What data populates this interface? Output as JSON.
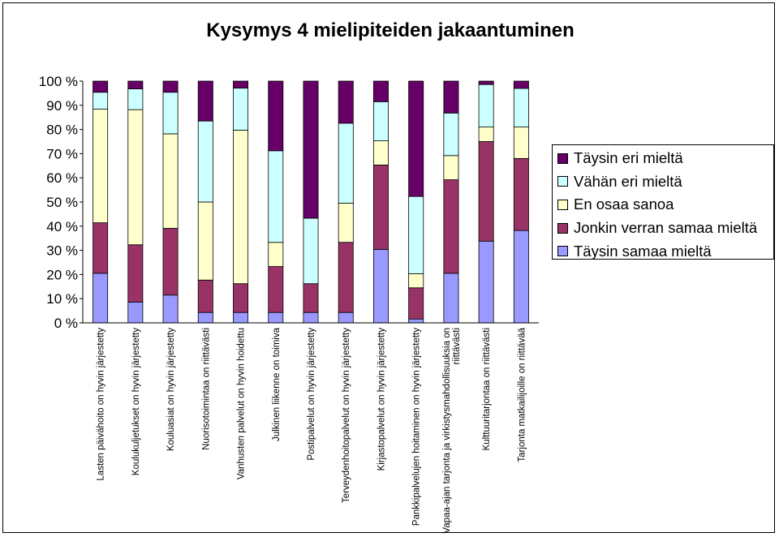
{
  "chart_data": {
    "type": "bar",
    "stacked": true,
    "percent": true,
    "title": "Kysymys 4 mielipiteiden jakaantuminen",
    "ylim": [
      0,
      100
    ],
    "y_ticks": [
      "0 %",
      "10 %",
      "20 %",
      "30 %",
      "40 %",
      "50 %",
      "60 %",
      "70 %",
      "80 %",
      "90 %",
      "100 %"
    ],
    "grid": false,
    "legend_position": "right",
    "categories": [
      "Lasten päivähoito on hyvin järjestetty",
      "Koulukuljetukset on hyvin järjestetty",
      "Kouluasiat on hyvin järjestetty",
      "Nuorisotoimintaa on riittävästi",
      "Vanhusten palvelut on hyvin hoidettu",
      "Julkinen liikenne on toimiva",
      "Postipalvelut on hyvin järjestetty",
      "Terveydenhoitopalvelut on hyvin järjestetty",
      "Kirjastopalvelut on hyvin järjestetty",
      "Pankkipalvelujen hoitaminen on hyvin järjestetty",
      "Vapaa-ajan tarjonta ja virkistysmahdollisuuksia on riittävästi",
      "Kulttuuritarjontaa on riittävästi",
      "Tarjonta matkailijoille on riittävää"
    ],
    "series": [
      {
        "name": "Täysin samaa mieltä",
        "color": "#9999ff",
        "values": [
          20.5,
          8.6,
          11.5,
          4.3,
          4.3,
          4.3,
          4.3,
          4.3,
          30.4,
          1.6,
          20.5,
          33.8,
          38.2
        ]
      },
      {
        "name": "Jonkin verran samaa mieltä",
        "color": "#993366",
        "values": [
          20.9,
          23.7,
          27.6,
          13.4,
          11.9,
          19.0,
          11.9,
          29.0,
          34.9,
          12.9,
          38.7,
          41.2,
          29.8
        ]
      },
      {
        "name": "En osaa sanoa",
        "color": "#ffffcc",
        "values": [
          47.0,
          55.9,
          39.1,
          32.3,
          63.5,
          10.0,
          0,
          16.2,
          10.0,
          5.8,
          10.0,
          6.0,
          13.0
        ]
      },
      {
        "name": "Vähän eri mieltä",
        "color": "#ccffff",
        "values": [
          7.0,
          8.6,
          17.2,
          33.5,
          17.4,
          37.9,
          27.1,
          33.1,
          16.2,
          32.0,
          17.6,
          17.6,
          16.0
        ]
      },
      {
        "name": "Täysin eri mieltä",
        "color": "#660066",
        "values": [
          4.6,
          3.2,
          4.6,
          16.5,
          2.9,
          28.8,
          56.7,
          17.4,
          8.5,
          47.7,
          13.2,
          1.4,
          3.0
        ]
      }
    ]
  }
}
